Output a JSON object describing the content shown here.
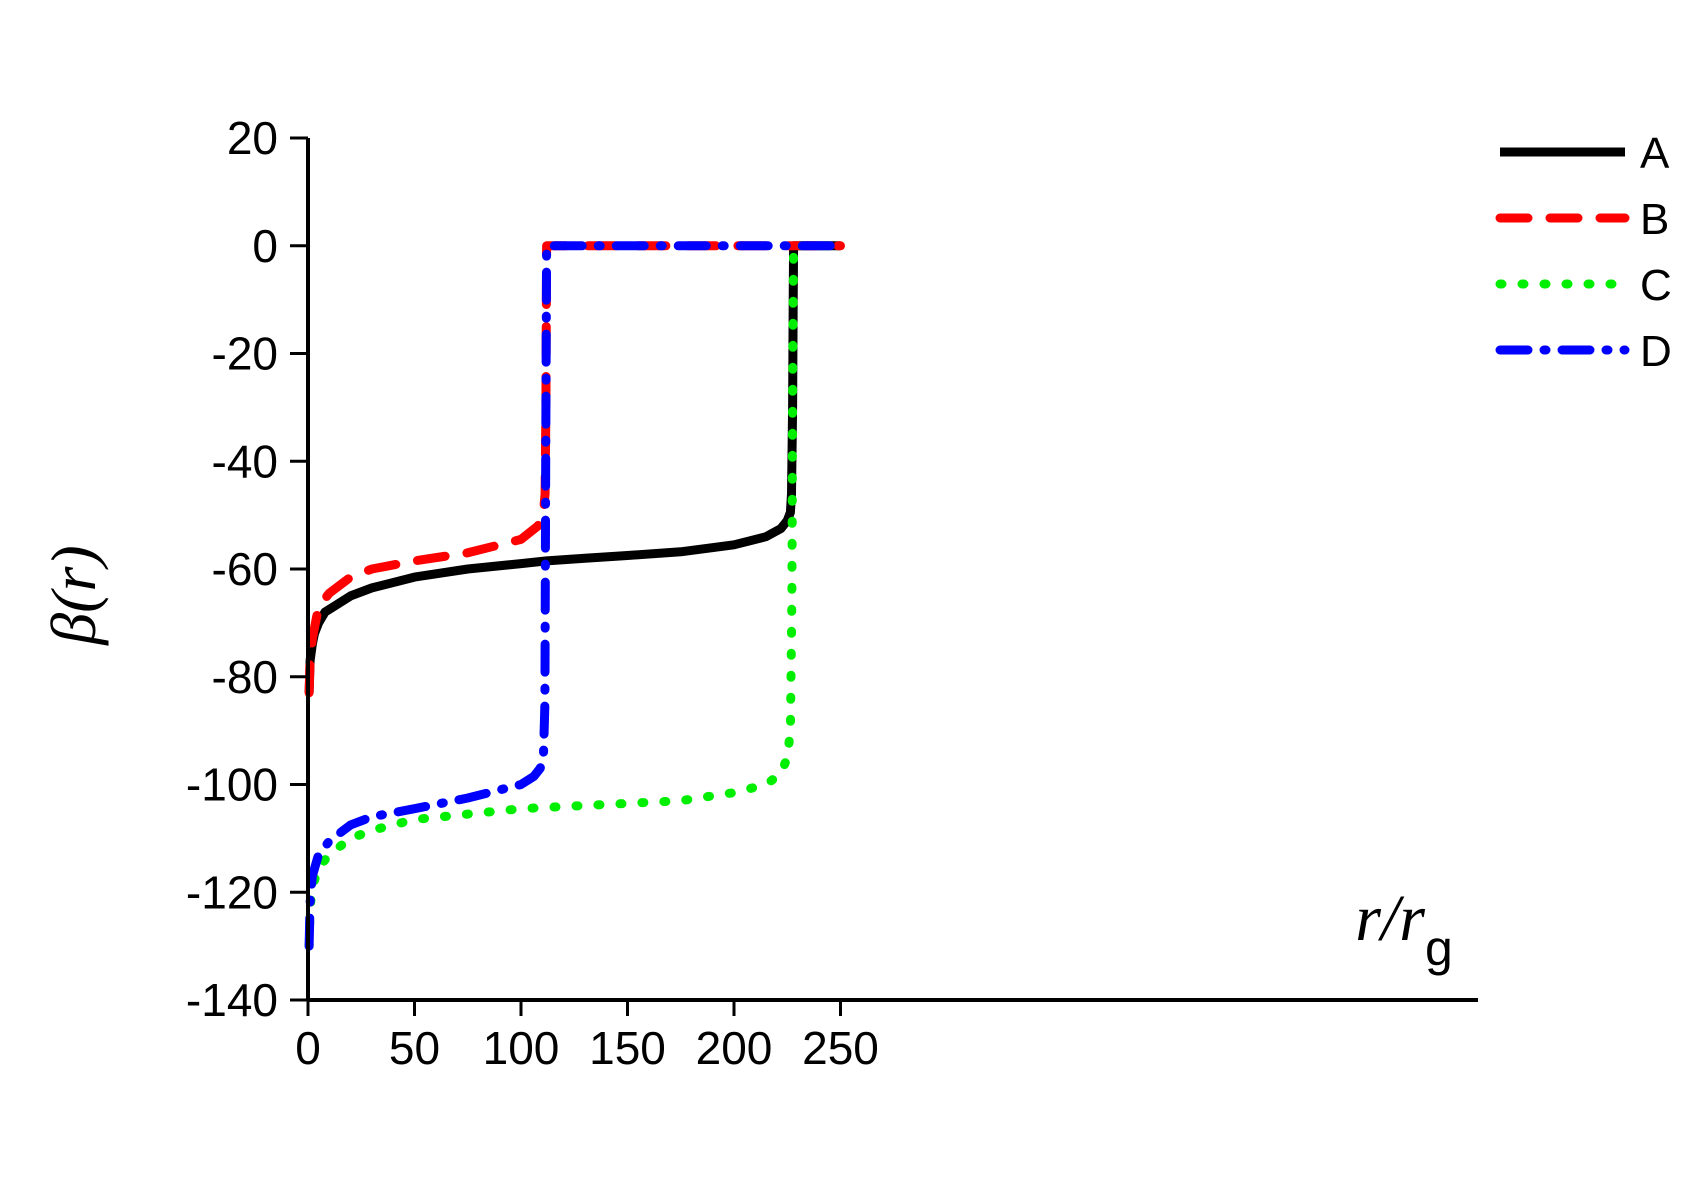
{
  "chart_data": {
    "type": "line",
    "title": "",
    "xlabel": {
      "main": "r/r",
      "sub": "g"
    },
    "ylabel": {
      "main": "β(",
      "var": "r",
      "close": ")"
    },
    "xlim": [
      0,
      275
    ],
    "ylim": [
      -140,
      20
    ],
    "xticks": [
      0,
      50,
      100,
      150,
      200,
      250
    ],
    "yticks": [
      20,
      0,
      -20,
      -40,
      -60,
      -80,
      -100,
      -120,
      -140
    ],
    "legend_position": "top-right",
    "grid": false,
    "series": [
      {
        "name": "A",
        "color": "#000000",
        "style": "solid",
        "x": [
          0.5,
          1,
          2,
          3,
          5,
          8,
          12,
          20,
          30,
          50,
          75,
          100,
          112,
          130,
          150,
          175,
          200,
          215,
          222,
          225,
          226.5,
          227,
          227.5,
          227.8,
          228,
          230,
          240,
          250
        ],
        "y": [
          -83,
          -77,
          -74,
          -72,
          -70,
          -68,
          -67,
          -65,
          -63.5,
          -61.5,
          -60,
          -59,
          -58.5,
          -58,
          -57.5,
          -56.8,
          -55.5,
          -54,
          -52.5,
          -51,
          -49.5,
          -46,
          -30,
          -10,
          0,
          0,
          0,
          0
        ]
      },
      {
        "name": "B",
        "color": "#ff0000",
        "style": "dashed",
        "x": [
          0.5,
          1,
          2,
          5,
          10,
          20,
          30,
          50,
          75,
          100,
          108,
          110.5,
          111.3,
          111.7,
          112,
          113,
          125,
          150,
          175,
          200,
          225,
          250
        ],
        "y": [
          -83,
          -77,
          -73,
          -67,
          -64.5,
          -61.5,
          -60,
          -58.5,
          -57,
          -54.5,
          -52,
          -49.5,
          -46,
          -30,
          0,
          0,
          0,
          0,
          0,
          0,
          0,
          0
        ]
      },
      {
        "name": "C",
        "color": "#00ee00",
        "style": "dotted",
        "x": [
          0.5,
          1,
          2,
          5,
          10,
          20,
          30,
          50,
          75,
          100,
          125,
          150,
          175,
          200,
          215,
          222,
          225,
          226.5,
          227.2,
          227.6,
          228,
          230,
          240,
          250
        ],
        "y": [
          -130,
          -123,
          -119,
          -115.5,
          -113,
          -110,
          -108.5,
          -106.5,
          -105.5,
          -104.5,
          -104,
          -103.5,
          -103,
          -101.5,
          -100,
          -98,
          -95,
          -90,
          -65,
          -20,
          0,
          0,
          0,
          0
        ]
      },
      {
        "name": "D",
        "color": "#0000ff",
        "style": "dashdot",
        "x": [
          0.5,
          1,
          2,
          5,
          10,
          20,
          30,
          50,
          75,
          100,
          106,
          109,
          110.5,
          111.2,
          111.6,
          112,
          113,
          125,
          150,
          175,
          200,
          225,
          250
        ],
        "y": [
          -130,
          -122,
          -117,
          -113,
          -110.5,
          -107.5,
          -106,
          -104.5,
          -102.5,
          -100,
          -98.5,
          -97,
          -95,
          -85,
          -40,
          0,
          0,
          0,
          0,
          0,
          0,
          0,
          0
        ]
      }
    ]
  }
}
